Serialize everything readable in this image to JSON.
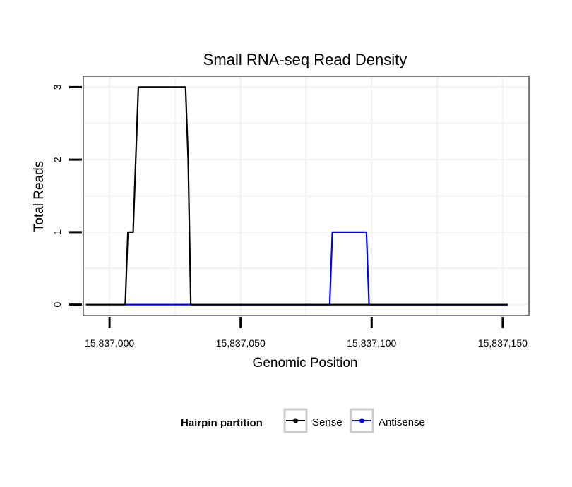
{
  "chart_data": {
    "type": "line",
    "title": "Small RNA-seq Read Density",
    "xlabel": "Genomic Position",
    "ylabel": "Total Reads",
    "xlim": [
      15836990,
      15837160
    ],
    "ylim": [
      -0.15,
      3.15
    ],
    "x_ticks": [
      15837000,
      15837050,
      15837100,
      15837150
    ],
    "x_tick_labels": [
      "15,837,000",
      "15,837,050",
      "15,837,100",
      "15,837,150"
    ],
    "y_ticks": [
      0,
      1,
      2,
      3
    ],
    "y_tick_labels": [
      "0",
      "1",
      "2",
      "3"
    ],
    "grid": true,
    "legend": {
      "title": "Hairpin partition",
      "placement": "bottom"
    },
    "series": [
      {
        "name": "Sense",
        "color": "#000000",
        "x": [
          15836991,
          15837006,
          15837007,
          15837009,
          15837011,
          15837029,
          15837030,
          15837031,
          15837152
        ],
        "y": [
          0,
          0,
          1,
          1,
          3,
          3,
          2,
          0,
          0
        ]
      },
      {
        "name": "Antisense",
        "color": "#0000ff",
        "x": [
          15837006,
          15837031,
          15837084,
          15837085,
          15837098,
          15837099,
          15837152
        ],
        "y": [
          0,
          0,
          0,
          1,
          1,
          0,
          0
        ]
      }
    ]
  }
}
